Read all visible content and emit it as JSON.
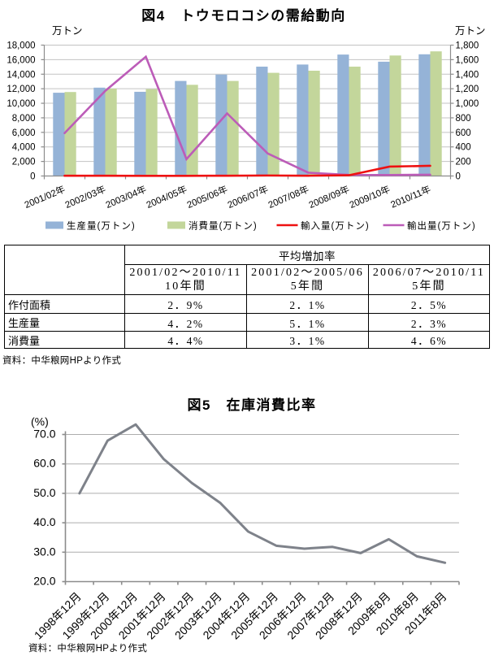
{
  "page": {
    "background": "#ffffff"
  },
  "figure4": {
    "title": "図4　トウモロコシの需給動向",
    "left_axis_unit": "万トン",
    "right_axis_unit": "万トン",
    "source_note": "資料：中华粮网HPより作式"
  },
  "figure5": {
    "title": "図5　在庫消費比率",
    "y_axis_unit": "(%)",
    "source_note": "資料：中华粮网HPより作式"
  },
  "table": {
    "group_header": "平均増加率",
    "columns": [
      {
        "line1": "2001/02～2010/11",
        "line2": "10年間"
      },
      {
        "line1": "2001/02～2005/06",
        "line2": "5年間"
      },
      {
        "line1": "2006/07～2010/11",
        "line2": "5年間"
      }
    ],
    "rows": [
      {
        "label": "作付面積",
        "values": [
          "2.9%",
          "2.1%",
          "2.5%"
        ]
      },
      {
        "label": "生産量",
        "values": [
          "4.2%",
          "5.1%",
          "2.3%"
        ]
      },
      {
        "label": "消費量",
        "values": [
          "4.4%",
          "3.1%",
          "4.6%"
        ]
      }
    ]
  },
  "chart_data": [
    {
      "type": "bar",
      "subtype": "bar-line-combo",
      "title": "図4　トウモロコシの需給動向",
      "categories": [
        "2001/02年",
        "2002/03年",
        "2003/04年",
        "2004/05年",
        "2005/06年",
        "2006/07年",
        "2007/08年",
        "2008/09年",
        "2009/10年",
        "2010/11年"
      ],
      "series": [
        {
          "name": "生産量(万トン)",
          "type": "bar",
          "axis": "left",
          "color": "#95B3D7",
          "values": [
            11450,
            12150,
            11580,
            13070,
            13950,
            15040,
            15330,
            16700,
            15720,
            16740
          ]
        },
        {
          "name": "消費量(万トン)",
          "type": "bar",
          "axis": "left",
          "color": "#C3D69B",
          "values": [
            11550,
            12020,
            11950,
            12540,
            13070,
            14190,
            14480,
            15040,
            16570,
            17140
          ]
        },
        {
          "name": "輸入量(万トン)",
          "type": "line",
          "axis": "right",
          "color": "#EE1111",
          "values": [
            3,
            3,
            2,
            2,
            4,
            7,
            4,
            10,
            129,
            140
          ]
        },
        {
          "name": "輸出量(万トン)",
          "type": "line",
          "axis": "right",
          "color": "#BC5CB8",
          "values": [
            590,
            1170,
            1640,
            232,
            861,
            310,
            45,
            15,
            13,
            18
          ]
        }
      ],
      "left_axis": {
        "unit": "万トン",
        "min": 0,
        "max": 18000,
        "step": 2000
      },
      "right_axis": {
        "unit": "万トン",
        "min": 0,
        "max": 1800,
        "step": 200
      },
      "grid": true,
      "legend_position": "bottom"
    },
    {
      "type": "line",
      "title": "図5　在庫消費比率",
      "categories": [
        "1998年12月",
        "1999年12月",
        "2000年12月",
        "2001年12月",
        "2002年12月",
        "2003年12月",
        "2004年12月",
        "2005年12月",
        "2006年12月",
        "2007年12月",
        "2008年12月",
        "2009年8月",
        "2010年8月",
        "2011年8月"
      ],
      "values": [
        50.0,
        67.9,
        73.4,
        61.6,
        53.5,
        46.8,
        37.0,
        32.2,
        31.2,
        31.8,
        29.7,
        34.4,
        28.6,
        26.4
      ],
      "ylabel": "(%)",
      "ylim": [
        20,
        70
      ],
      "ystep": 10,
      "color": "#7E828A",
      "grid": true,
      "legend_position": "none"
    }
  ],
  "style": {
    "gridline_color": "#C3C3C3",
    "axis_color": "#8C8C8C",
    "tick_label_color": "#000000"
  }
}
